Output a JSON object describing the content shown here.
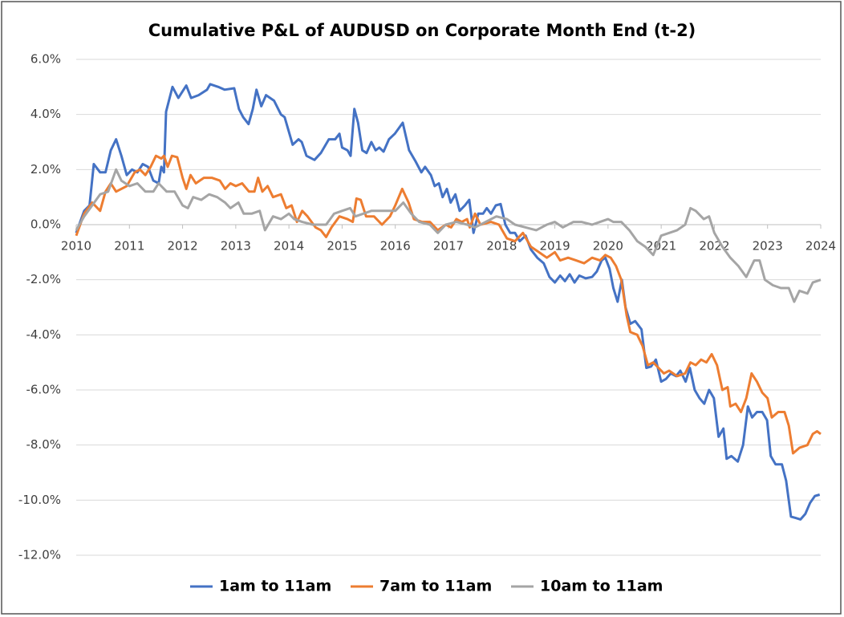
{
  "chart_data": {
    "type": "line",
    "title": "Cumulative P&L of AUDUSD on Corporate Month End (t-2)",
    "xlim": [
      2010,
      2024
    ],
    "xticks": [
      2010,
      2011,
      2012,
      2013,
      2014,
      2015,
      2016,
      2017,
      2018,
      2019,
      2020,
      2021,
      2022,
      2023,
      2024
    ],
    "ylim": [
      -12,
      6
    ],
    "yticks": [
      {
        "value": 6,
        "label": "6.0%"
      },
      {
        "value": 4,
        "label": "4.0%"
      },
      {
        "value": 2,
        "label": "2.0%"
      },
      {
        "value": 0,
        "label": "0.0%"
      },
      {
        "value": -2,
        "label": "-2.0%"
      },
      {
        "value": -4,
        "label": "-4.0%"
      },
      {
        "value": -6,
        "label": "-6.0%"
      },
      {
        "value": -8,
        "label": "-8.0%"
      },
      {
        "value": -10,
        "label": "-10.0%"
      },
      {
        "value": -12,
        "label": "-12.0%"
      }
    ],
    "grid": true,
    "legend": "bottom",
    "series": [
      {
        "name": "1am to 11am",
        "color": "#4472c4",
        "x": [
          2010.0,
          2010.15,
          2010.25,
          2010.33,
          2010.45,
          2010.55,
          2010.65,
          2010.75,
          2010.85,
          2010.95,
          2011.05,
          2011.15,
          2011.25,
          2011.35,
          2011.45,
          2011.55,
          2011.6,
          2011.65,
          2011.69,
          2011.81,
          2011.92,
          2012.07,
          2012.16,
          2012.3,
          2012.46,
          2012.52,
          2012.67,
          2012.79,
          2012.97,
          2013.06,
          2013.14,
          2013.24,
          2013.32,
          2013.39,
          2013.48,
          2013.57,
          2013.72,
          2013.85,
          2013.92,
          2014.07,
          2014.18,
          2014.24,
          2014.33,
          2014.48,
          2014.6,
          2014.75,
          2014.87,
          2014.95,
          2015.0,
          2015.1,
          2015.16,
          2015.23,
          2015.3,
          2015.38,
          2015.46,
          2015.55,
          2015.63,
          2015.7,
          2015.78,
          2015.88,
          2015.99,
          2016.14,
          2016.26,
          2016.38,
          2016.49,
          2016.56,
          2016.67,
          2016.74,
          2016.82,
          2016.89,
          2016.97,
          2017.04,
          2017.13,
          2017.21,
          2017.31,
          2017.39,
          2017.47,
          2017.56,
          2017.65,
          2017.72,
          2017.8,
          2017.89,
          2017.98,
          2018.07,
          2018.16,
          2018.25,
          2018.34,
          2018.45,
          2018.55,
          2018.67,
          2018.79,
          2018.9,
          2019.0,
          2019.1,
          2019.19,
          2019.28,
          2019.37,
          2019.46,
          2019.58,
          2019.7,
          2019.79,
          2019.88,
          2019.95,
          2020.03,
          2020.1,
          2020.18,
          2020.26,
          2020.33,
          2020.42,
          2020.51,
          2020.63,
          2020.72,
          2020.81,
          2020.9,
          2021.0,
          2021.09,
          2021.18,
          2021.28,
          2021.36,
          2021.46,
          2021.54,
          2021.63,
          2021.72,
          2021.81,
          2021.9,
          2021.99,
          2022.08,
          2022.17,
          2022.23,
          2022.32,
          2022.44,
          2022.54,
          2022.63,
          2022.71,
          2022.8,
          2022.9,
          2022.99,
          2023.06,
          2023.15,
          2023.27,
          2023.35,
          2023.44,
          2023.53,
          2023.62,
          2023.71,
          2023.8,
          2023.89,
          2023.98
        ],
        "values": [
          -0.3,
          0.5,
          0.7,
          2.2,
          1.9,
          1.9,
          2.7,
          3.1,
          2.5,
          1.8,
          2.0,
          1.9,
          2.2,
          2.1,
          1.6,
          1.5,
          2.1,
          1.9,
          4.1,
          5.0,
          4.6,
          5.05,
          4.6,
          4.7,
          4.9,
          5.1,
          5.0,
          4.9,
          4.95,
          4.2,
          3.9,
          3.65,
          4.2,
          4.9,
          4.3,
          4.7,
          4.5,
          4.0,
          3.9,
          2.9,
          3.1,
          3.0,
          2.5,
          2.35,
          2.6,
          3.1,
          3.1,
          3.3,
          2.8,
          2.7,
          2.5,
          4.2,
          3.7,
          2.7,
          2.6,
          3.0,
          2.7,
          2.8,
          2.65,
          3.1,
          3.3,
          3.7,
          2.7,
          2.3,
          1.9,
          2.1,
          1.8,
          1.4,
          1.5,
          1.0,
          1.3,
          0.8,
          1.1,
          0.5,
          0.7,
          0.9,
          -0.3,
          0.4,
          0.4,
          0.6,
          0.4,
          0.7,
          0.75,
          0.0,
          -0.3,
          -0.3,
          -0.6,
          -0.4,
          -0.9,
          -1.2,
          -1.4,
          -1.9,
          -2.1,
          -1.85,
          -2.05,
          -1.8,
          -2.1,
          -1.85,
          -1.95,
          -1.9,
          -1.7,
          -1.3,
          -1.2,
          -1.6,
          -2.3,
          -2.8,
          -2.0,
          -3.0,
          -3.6,
          -3.5,
          -3.8,
          -5.2,
          -5.15,
          -4.9,
          -5.7,
          -5.6,
          -5.4,
          -5.5,
          -5.3,
          -5.7,
          -5.2,
          -6.0,
          -6.3,
          -6.5,
          -6.0,
          -6.3,
          -7.7,
          -7.4,
          -8.5,
          -8.4,
          -8.6,
          -8.0,
          -6.6,
          -7.0,
          -6.8,
          -6.8,
          -7.1,
          -8.4,
          -8.7,
          -8.7,
          -9.3,
          -10.6,
          -10.65,
          -10.7,
          -10.5,
          -10.1,
          -9.85,
          -9.8
        ]
      },
      {
        "name": "7am to 11am",
        "color": "#ed7d31",
        "x": [
          2010.0,
          2010.15,
          2010.3,
          2010.45,
          2010.55,
          2010.65,
          2010.75,
          2010.95,
          2011.1,
          2011.2,
          2011.3,
          2011.4,
          2011.5,
          2011.6,
          2011.65,
          2011.72,
          2011.8,
          2011.9,
          2012.0,
          2012.07,
          2012.15,
          2012.25,
          2012.4,
          2012.55,
          2012.7,
          2012.8,
          2012.9,
          2013.0,
          2013.12,
          2013.25,
          2013.35,
          2013.42,
          2013.5,
          2013.6,
          2013.7,
          2013.85,
          2013.95,
          2014.05,
          2014.15,
          2014.25,
          2014.35,
          2014.5,
          2014.6,
          2014.7,
          2014.8,
          2014.95,
          2015.1,
          2015.2,
          2015.27,
          2015.35,
          2015.45,
          2015.6,
          2015.75,
          2015.9,
          2016.0,
          2016.13,
          2016.25,
          2016.35,
          2016.5,
          2016.65,
          2016.8,
          2016.95,
          2017.05,
          2017.15,
          2017.25,
          2017.35,
          2017.4,
          2017.5,
          2017.6,
          2017.8,
          2017.95,
          2018.1,
          2018.25,
          2018.4,
          2018.55,
          2018.7,
          2018.85,
          2019.0,
          2019.1,
          2019.25,
          2019.4,
          2019.55,
          2019.7,
          2019.85,
          2019.95,
          2020.05,
          2020.15,
          2020.25,
          2020.35,
          2020.42,
          2020.55,
          2020.65,
          2020.75,
          2020.85,
          2020.95,
          2021.05,
          2021.15,
          2021.3,
          2021.45,
          2021.55,
          2021.65,
          2021.75,
          2021.85,
          2021.95,
          2022.05,
          2022.15,
          2022.25,
          2022.3,
          2022.4,
          2022.5,
          2022.6,
          2022.7,
          2022.8,
          2022.9,
          2023.0,
          2023.08,
          2023.2,
          2023.32,
          2023.4,
          2023.48,
          2023.6,
          2023.75,
          2023.85,
          2023.93,
          2024.0
        ],
        "values": [
          -0.4,
          0.4,
          0.8,
          0.5,
          1.2,
          1.5,
          1.2,
          1.4,
          1.9,
          2.0,
          1.8,
          2.1,
          2.5,
          2.4,
          2.5,
          2.1,
          2.5,
          2.45,
          1.7,
          1.3,
          1.8,
          1.5,
          1.7,
          1.7,
          1.6,
          1.3,
          1.5,
          1.4,
          1.5,
          1.2,
          1.2,
          1.7,
          1.2,
          1.4,
          1.0,
          1.1,
          0.6,
          0.7,
          0.1,
          0.5,
          0.3,
          -0.1,
          -0.2,
          -0.45,
          -0.1,
          0.3,
          0.2,
          0.1,
          0.95,
          0.9,
          0.3,
          0.3,
          0.0,
          0.3,
          0.7,
          1.3,
          0.8,
          0.2,
          0.1,
          0.1,
          -0.2,
          0.0,
          -0.1,
          0.2,
          0.1,
          0.2,
          -0.1,
          0.4,
          0.0,
          0.1,
          0.0,
          -0.5,
          -0.6,
          -0.3,
          -0.8,
          -1.0,
          -1.2,
          -1.0,
          -1.3,
          -1.2,
          -1.3,
          -1.4,
          -1.2,
          -1.3,
          -1.1,
          -1.2,
          -1.5,
          -2.0,
          -3.3,
          -3.9,
          -4.0,
          -4.4,
          -5.1,
          -5.0,
          -5.2,
          -5.4,
          -5.3,
          -5.5,
          -5.4,
          -5.0,
          -5.1,
          -4.9,
          -5.0,
          -4.7,
          -5.1,
          -6.0,
          -5.9,
          -6.6,
          -6.5,
          -6.8,
          -6.3,
          -5.4,
          -5.7,
          -6.1,
          -6.3,
          -7.0,
          -6.8,
          -6.8,
          -7.3,
          -8.3,
          -8.1,
          -8.0,
          -7.6,
          -7.5,
          -7.6
        ]
      },
      {
        "name": "10am to 11am",
        "color": "#a5a5a5",
        "x": [
          2010.0,
          2010.15,
          2010.3,
          2010.45,
          2010.6,
          2010.75,
          2010.85,
          2011.0,
          2011.15,
          2011.3,
          2011.45,
          2011.55,
          2011.7,
          2011.85,
          2012.0,
          2012.1,
          2012.2,
          2012.35,
          2012.5,
          2012.65,
          2012.8,
          2012.9,
          2013.05,
          2013.15,
          2013.3,
          2013.45,
          2013.55,
          2013.7,
          2013.85,
          2014.0,
          2014.1,
          2014.25,
          2014.45,
          2014.7,
          2014.85,
          2015.0,
          2015.15,
          2015.25,
          2015.4,
          2015.55,
          2015.8,
          2016.0,
          2016.15,
          2016.3,
          2016.45,
          2016.65,
          2016.8,
          2016.95,
          2017.15,
          2017.35,
          2017.5,
          2017.7,
          2017.9,
          2018.1,
          2018.25,
          2018.45,
          2018.65,
          2018.85,
          2019.0,
          2019.15,
          2019.35,
          2019.5,
          2019.7,
          2019.85,
          2020.0,
          2020.1,
          2020.25,
          2020.4,
          2020.55,
          2020.7,
          2020.85,
          2021.0,
          2021.15,
          2021.3,
          2021.45,
          2021.55,
          2021.65,
          2021.8,
          2021.9,
          2022.0,
          2022.15,
          2022.3,
          2022.45,
          2022.6,
          2022.75,
          2022.85,
          2022.95,
          2023.1,
          2023.25,
          2023.4,
          2023.5,
          2023.6,
          2023.75,
          2023.85,
          2024.0
        ],
        "values": [
          -0.2,
          0.3,
          0.7,
          1.1,
          1.2,
          2.0,
          1.6,
          1.4,
          1.5,
          1.2,
          1.2,
          1.5,
          1.2,
          1.2,
          0.7,
          0.6,
          1.0,
          0.9,
          1.1,
          1.0,
          0.8,
          0.6,
          0.8,
          0.4,
          0.4,
          0.5,
          -0.2,
          0.3,
          0.2,
          0.4,
          0.2,
          0.1,
          0.0,
          0.0,
          0.4,
          0.5,
          0.6,
          0.3,
          0.4,
          0.5,
          0.5,
          0.5,
          0.8,
          0.4,
          0.1,
          0.0,
          -0.3,
          0.0,
          0.1,
          0.0,
          -0.1,
          0.1,
          0.3,
          0.2,
          0.0,
          -0.1,
          -0.2,
          0.0,
          0.1,
          -0.1,
          0.1,
          0.1,
          0.0,
          0.1,
          0.2,
          0.1,
          0.1,
          -0.2,
          -0.6,
          -0.8,
          -1.1,
          -0.4,
          -0.3,
          -0.2,
          0.0,
          0.6,
          0.5,
          0.2,
          0.3,
          -0.3,
          -0.8,
          -1.2,
          -1.5,
          -1.9,
          -1.3,
          -1.3,
          -2.0,
          -2.2,
          -2.3,
          -2.3,
          -2.8,
          -2.4,
          -2.5,
          -2.1,
          -2.0
        ]
      }
    ]
  }
}
